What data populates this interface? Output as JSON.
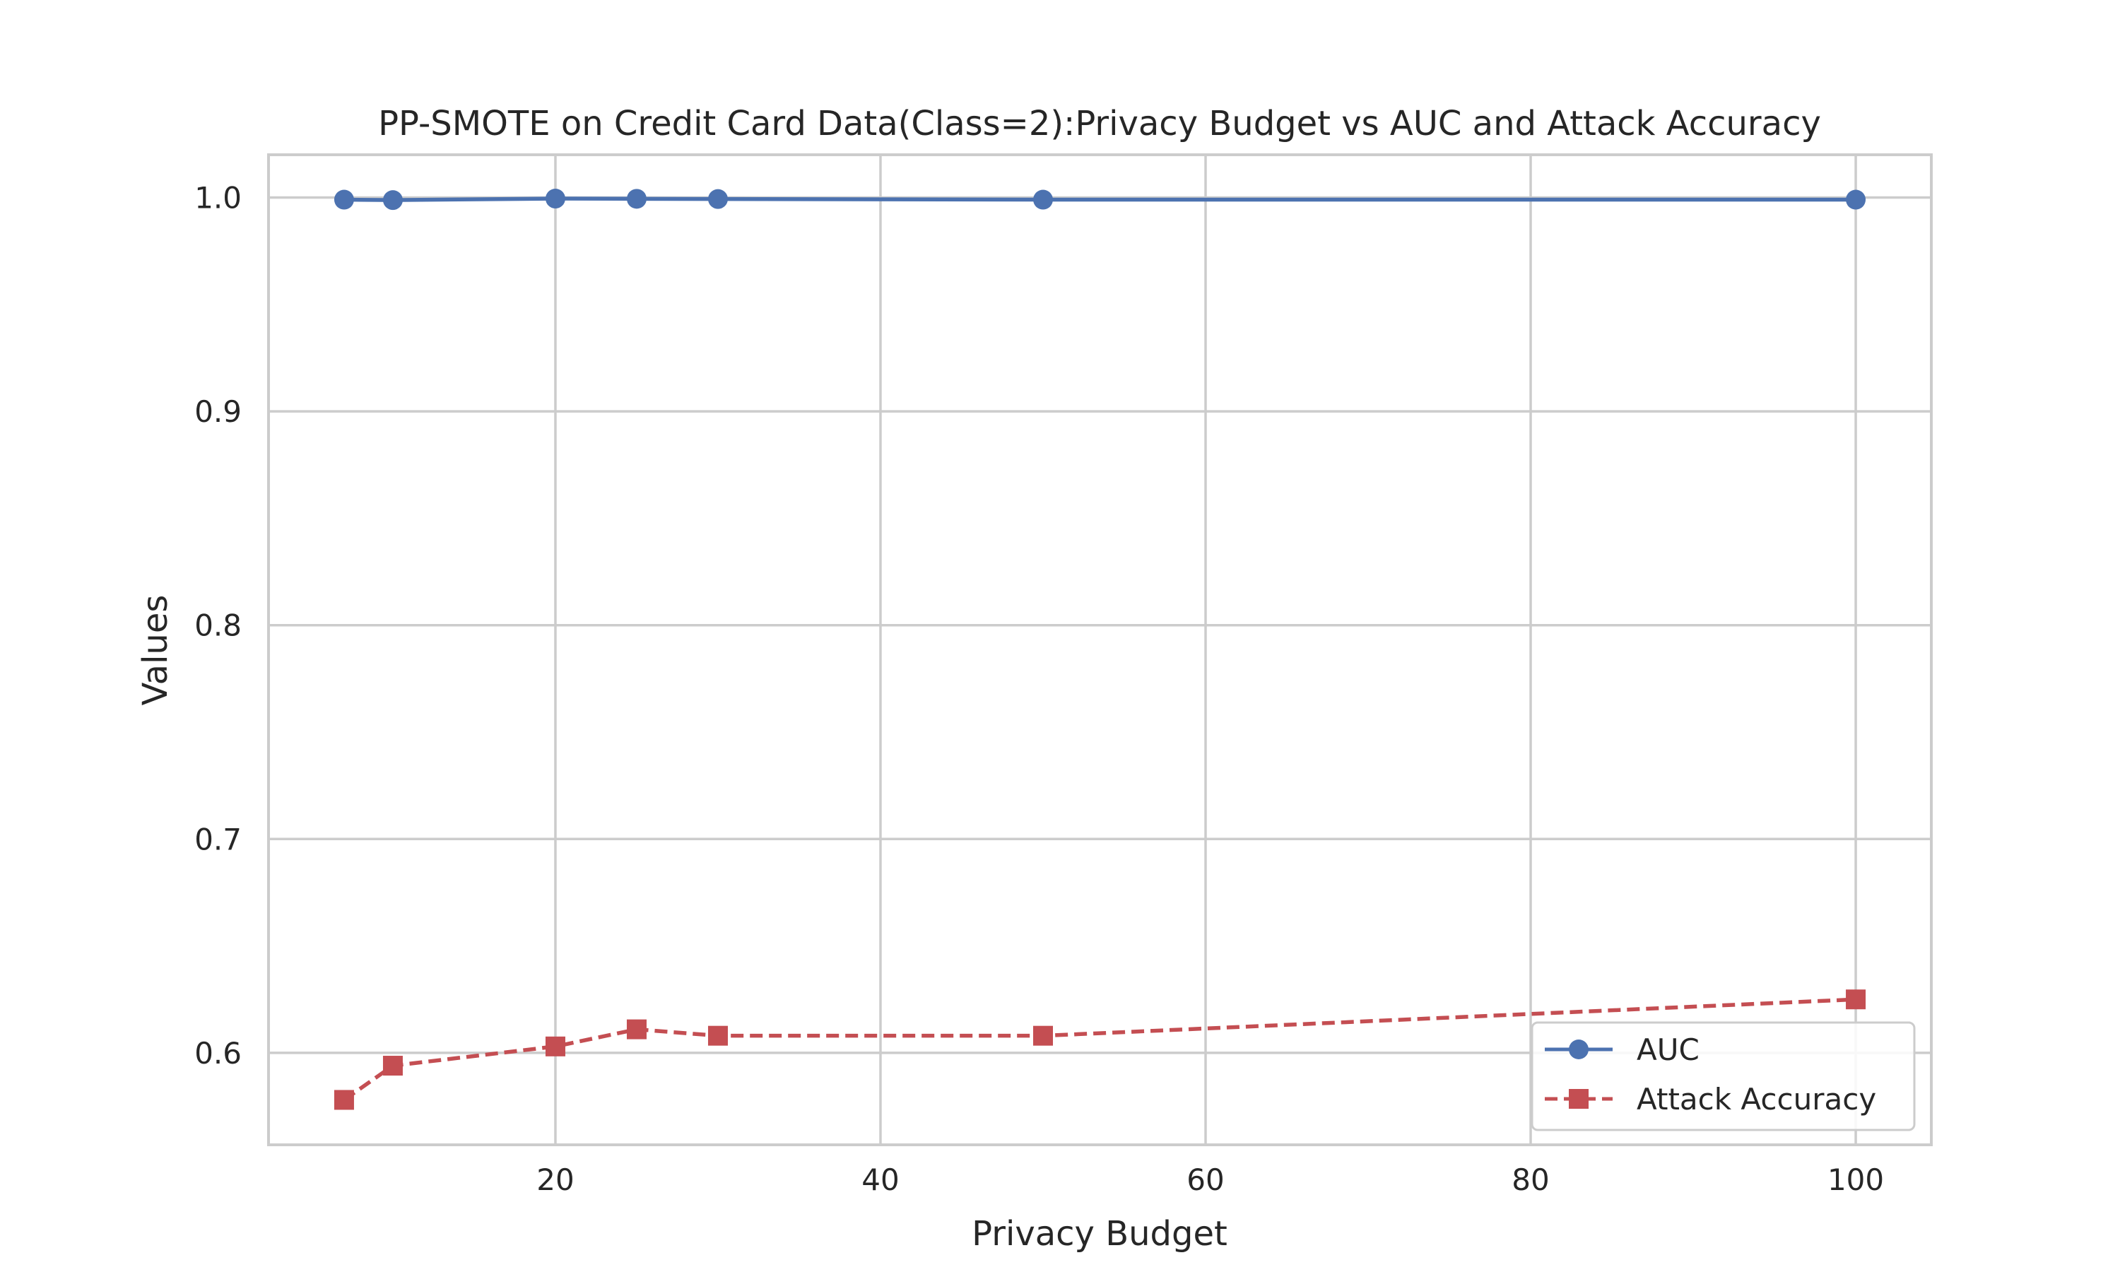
{
  "chart_data": {
    "type": "line",
    "title": "PP-SMOTE on Credit Card Data(Class=2):Privacy Budget vs AUC and Attack Accuracy",
    "xlabel": "Privacy Budget",
    "ylabel": "Values",
    "xlim": [
      2.35,
      104.65
    ],
    "ylim": [
      0.557,
      1.02
    ],
    "xticks": [
      20,
      40,
      60,
      80,
      100
    ],
    "yticks": [
      0.6,
      0.7,
      0.8,
      0.9,
      1.0
    ],
    "xtick_labels": [
      "20",
      "40",
      "60",
      "80",
      "100"
    ],
    "ytick_labels": [
      "0.6",
      "0.7",
      "0.8",
      "0.9",
      "1.0"
    ],
    "grid": true,
    "legend_position": "lower-right",
    "series": [
      {
        "name": "AUC",
        "color": "#4c72b0",
        "line_style": "solid",
        "marker": "circle",
        "x": [
          7,
          10,
          20,
          25,
          30,
          50,
          100
        ],
        "y": [
          0.999,
          0.9988,
          0.9995,
          0.9994,
          0.9993,
          0.999,
          0.999
        ]
      },
      {
        "name": "Attack Accuracy",
        "color": "#c44e52",
        "line_style": "dashed",
        "marker": "square",
        "x": [
          7,
          10,
          20,
          25,
          30,
          50,
          100
        ],
        "y": [
          0.578,
          0.594,
          0.603,
          0.611,
          0.608,
          0.608,
          0.625
        ]
      }
    ]
  }
}
